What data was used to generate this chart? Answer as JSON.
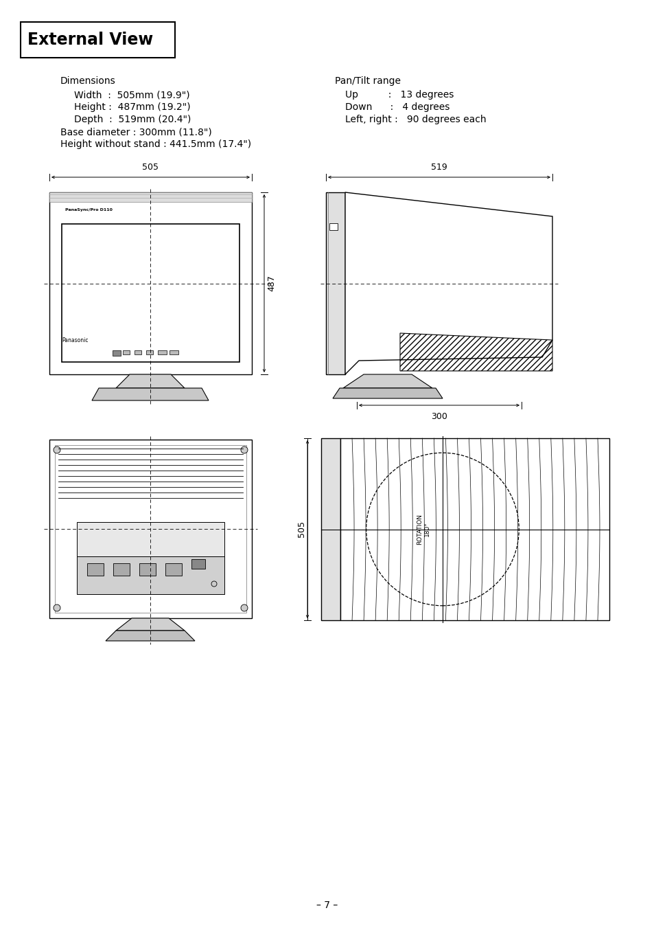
{
  "title": "External View",
  "bg_color": "#ffffff",
  "dimensions_header": "Dimensions",
  "dim_width": "Width  :  505mm (19.9\")",
  "dim_height": "Height :  487mm (19.2\")",
  "dim_depth": "Depth  :  519mm (20.4\")",
  "dim_base": "Base diameter : 300mm (11.8\")",
  "dim_stand": "Height without stand : 441.5mm (17.4\")",
  "pan_header": "Pan/Tilt range",
  "pan_up": "Up          :   13 degrees",
  "pan_down": "Down      :   4 degrees",
  "pan_lr": "Left, right :   90 degrees each",
  "page_number": "–7–",
  "label_505_top": "505",
  "label_519_top": "519",
  "label_487": "487",
  "label_300": "300",
  "label_505_bottom": "505",
  "label_rotation": "ROTATION\n180°"
}
